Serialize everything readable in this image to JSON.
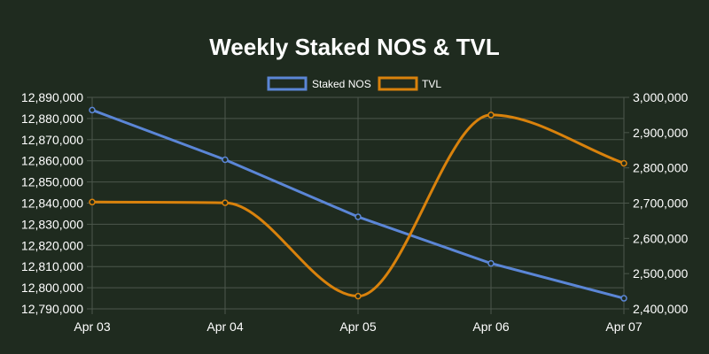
{
  "chart_data": {
    "type": "line",
    "title": "Weekly Staked NOS & TVL",
    "categories": [
      "Apr 03",
      "Apr 04",
      "Apr 05",
      "Apr 06",
      "Apr 07"
    ],
    "series": [
      {
        "name": "Staked NOS",
        "axis": "left",
        "color": "#5b86d6",
        "values": [
          12884000,
          12860500,
          12833500,
          12811500,
          12795000
        ]
      },
      {
        "name": "TVL",
        "axis": "right",
        "color": "#d9820c",
        "values": [
          2703000,
          2701000,
          2436000,
          2950000,
          2813000
        ]
      }
    ],
    "y_left": {
      "min": 12790000,
      "max": 12890000,
      "step": 10000,
      "tick_labels": [
        "12,790,000",
        "12,800,000",
        "12,810,000",
        "12,820,000",
        "12,830,000",
        "12,840,000",
        "12,850,000",
        "12,860,000",
        "12,870,000",
        "12,880,000",
        "12,890,000"
      ]
    },
    "y_right": {
      "min": 2400000,
      "max": 3000000,
      "step": 100000,
      "tick_labels": [
        "2,400,000",
        "2,500,000",
        "2,600,000",
        "2,700,000",
        "2,800,000",
        "2,900,000",
        "3,000,000"
      ]
    },
    "grid": true,
    "legend": "top-center"
  },
  "colors": {
    "background": "#1f2b1f",
    "grid": "#4c574c",
    "text": "#ffffff"
  }
}
